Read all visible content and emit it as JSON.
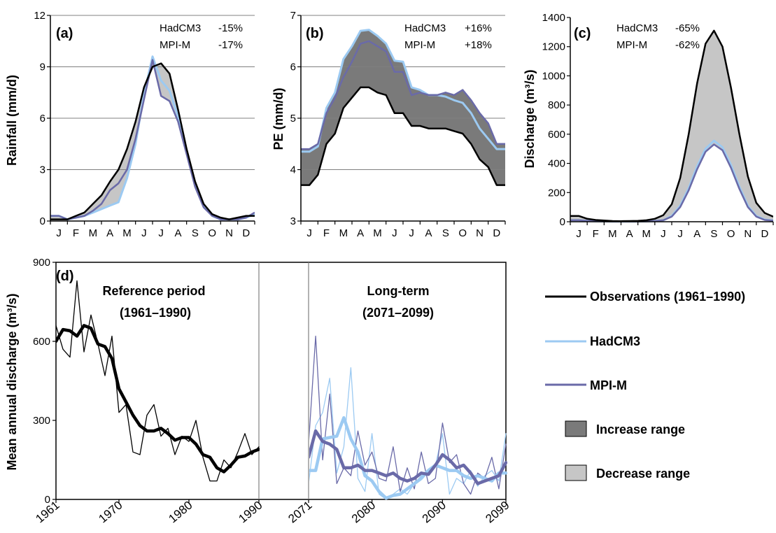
{
  "colors": {
    "observations": "#000000",
    "hadcm3": "#9ccaf2",
    "mpim": "#6a6aa8",
    "increase": "#7a7a7a",
    "decrease": "#c6c6c6",
    "grid": "#808080"
  },
  "legend": {
    "observations": "Observations (1961–1990)",
    "hadcm3": "HadCM3",
    "mpim": "MPI-M",
    "increase": "Increase range",
    "decrease": "Decrease range"
  },
  "chart_data": [
    {
      "type": "line",
      "panel": "(a)",
      "ylabel": "Rainfall (mm/d)",
      "ylim": [
        0,
        12
      ],
      "yticks": [
        0,
        3,
        6,
        9,
        12
      ],
      "grid": true,
      "categories": [
        "J",
        "F",
        "M",
        "A",
        "M",
        "J",
        "J",
        "A",
        "S",
        "O",
        "N",
        "D"
      ],
      "annotations": [
        {
          "model": "HadCM3",
          "change": "-15%"
        },
        {
          "model": "MPI-M",
          "change": "-17%"
        }
      ],
      "series": [
        {
          "name": "Observations",
          "x": [
            0,
            0.5,
            1,
            1.5,
            2,
            2.5,
            3,
            3.5,
            4,
            4.5,
            5,
            5.5,
            6,
            6.5,
            7,
            7.5,
            8,
            8.5,
            9,
            9.5,
            10,
            10.5,
            11,
            11.5
          ],
          "values": [
            0.1,
            0.1,
            0.3,
            0.5,
            1.0,
            1.5,
            2.3,
            3.0,
            4.2,
            5.8,
            7.8,
            9.0,
            9.2,
            8.6,
            6.5,
            4.2,
            2.3,
            1.0,
            0.4,
            0.2,
            0.1,
            0.2,
            0.3,
            0.3
          ]
        },
        {
          "name": "HadCM3",
          "x": [
            0,
            0.5,
            1,
            1.5,
            2,
            2.5,
            3,
            3.5,
            4,
            4.5,
            5,
            5.5,
            6,
            6.5,
            7,
            7.5,
            8,
            8.5,
            9,
            9.5,
            10,
            10.5,
            11,
            11.5
          ],
          "values": [
            0.3,
            0.1,
            0.2,
            0.3,
            0.5,
            0.7,
            0.9,
            1.1,
            2.5,
            4.5,
            7.4,
            9.6,
            8.2,
            7.6,
            6.1,
            4.1,
            2.1,
            0.9,
            0.3,
            0.1,
            0.1,
            0.1,
            0.2,
            0.4
          ]
        },
        {
          "name": "MPI-M",
          "x": [
            0,
            0.5,
            1,
            1.5,
            2,
            2.5,
            3,
            3.5,
            4,
            4.5,
            5,
            5.5,
            6,
            6.5,
            7,
            7.5,
            8,
            8.5,
            9,
            9.5,
            10,
            10.5,
            11,
            11.5
          ],
          "values": [
            0.3,
            0.1,
            0.2,
            0.3,
            0.6,
            1.0,
            1.8,
            2.2,
            3.0,
            4.8,
            7.1,
            9.4,
            7.3,
            7.0,
            5.8,
            3.9,
            2.0,
            0.8,
            0.3,
            0.1,
            0.1,
            0.1,
            0.2,
            0.5
          ]
        }
      ]
    },
    {
      "type": "line",
      "panel": "(b)",
      "ylabel": "PE (mm/d)",
      "ylim": [
        3,
        7
      ],
      "yticks": [
        3,
        4,
        5,
        6,
        7
      ],
      "grid": true,
      "categories": [
        "J",
        "F",
        "M",
        "A",
        "M",
        "J",
        "J",
        "A",
        "S",
        "O",
        "N",
        "D"
      ],
      "annotations": [
        {
          "model": "HadCM3",
          "change": "+16%"
        },
        {
          "model": "MPI-M",
          "change": "+18%"
        }
      ],
      "series": [
        {
          "name": "Observations",
          "x": [
            0,
            0.5,
            1,
            1.5,
            2,
            2.5,
            3,
            3.5,
            4,
            4.5,
            5,
            5.5,
            6,
            6.5,
            7,
            7.5,
            8,
            8.5,
            9,
            9.5,
            10,
            10.5,
            11,
            11.5
          ],
          "values": [
            3.7,
            3.9,
            4.5,
            4.7,
            5.2,
            5.4,
            5.6,
            5.6,
            5.5,
            5.45,
            5.1,
            5.1,
            4.85,
            4.85,
            4.8,
            4.8,
            4.8,
            4.75,
            4.7,
            4.5,
            4.2,
            4.05,
            3.7,
            3.7
          ]
        },
        {
          "name": "HadCM3",
          "x": [
            0,
            0.5,
            1,
            1.5,
            2,
            2.5,
            3,
            3.5,
            4,
            4.5,
            5,
            5.5,
            6,
            6.5,
            7,
            7.5,
            8,
            8.5,
            9,
            9.5,
            10,
            10.5,
            11,
            11.5
          ],
          "values": [
            4.35,
            4.45,
            5.2,
            5.5,
            6.15,
            6.4,
            6.7,
            6.72,
            6.6,
            6.45,
            6.12,
            6.1,
            5.6,
            5.55,
            5.45,
            5.45,
            5.42,
            5.35,
            5.3,
            5.1,
            4.8,
            4.6,
            4.4,
            4.4
          ]
        },
        {
          "name": "MPI-M",
          "x": [
            0,
            0.5,
            1,
            1.5,
            2,
            2.5,
            3,
            3.5,
            4,
            4.5,
            5,
            5.5,
            6,
            6.5,
            7,
            7.5,
            8,
            8.5,
            9,
            9.5,
            10,
            10.5,
            11,
            11.5
          ],
          "values": [
            4.4,
            4.5,
            5.1,
            5.4,
            5.8,
            6.1,
            6.45,
            6.5,
            6.4,
            6.3,
            5.9,
            5.9,
            5.45,
            5.5,
            5.45,
            5.45,
            5.5,
            5.45,
            5.55,
            5.35,
            5.1,
            4.9,
            4.5,
            4.5
          ]
        }
      ]
    },
    {
      "type": "line",
      "panel": "(c)",
      "ylabel": "Discharge (m³/s)",
      "ylim": [
        0,
        1400
      ],
      "yticks": [
        0,
        200,
        400,
        600,
        800,
        1000,
        1200,
        1400
      ],
      "grid": false,
      "categories": [
        "J",
        "F",
        "M",
        "A",
        "M",
        "J",
        "J",
        "A",
        "S",
        "O",
        "N",
        "D"
      ],
      "annotations": [
        {
          "model": "HadCM3",
          "change": "-65%"
        },
        {
          "model": "MPI-M",
          "change": "-62%"
        }
      ],
      "series": [
        {
          "name": "Observations",
          "x": [
            0,
            0.5,
            1,
            1.5,
            2,
            2.5,
            3,
            3.5,
            4,
            4.5,
            5,
            5.5,
            6,
            6.5,
            7,
            7.5,
            8,
            8.5,
            9,
            9.5,
            10,
            10.5,
            11,
            11.5
          ],
          "values": [
            40,
            20,
            12,
            8,
            5,
            4,
            5,
            6,
            10,
            20,
            45,
            120,
            300,
            600,
            950,
            1220,
            1310,
            1200,
            920,
            600,
            310,
            130,
            60,
            35
          ]
        },
        {
          "name": "HadCM3",
          "x": [
            0,
            0.5,
            1,
            1.5,
            2,
            2.5,
            3,
            3.5,
            4,
            4.5,
            5,
            5.5,
            6,
            6.5,
            7,
            7.5,
            8,
            8.5,
            9,
            9.5,
            10,
            10.5,
            11,
            11.5
          ],
          "values": [
            10,
            6,
            4,
            3,
            2,
            2,
            2,
            2,
            3,
            5,
            10,
            40,
            110,
            230,
            380,
            500,
            555,
            510,
            390,
            240,
            110,
            40,
            15,
            8
          ]
        },
        {
          "name": "MPI-M",
          "x": [
            0,
            0.5,
            1,
            1.5,
            2,
            2.5,
            3,
            3.5,
            4,
            4.5,
            5,
            5.5,
            6,
            6.5,
            7,
            7.5,
            8,
            8.5,
            9,
            9.5,
            10,
            10.5,
            11,
            11.5
          ],
          "values": [
            10,
            6,
            4,
            3,
            2,
            2,
            2,
            2,
            3,
            5,
            10,
            35,
            100,
            215,
            360,
            480,
            530,
            490,
            370,
            225,
            100,
            35,
            12,
            7
          ]
        }
      ]
    },
    {
      "type": "line",
      "panel": "(d)",
      "ylabel": "Mean annual discharge (m³/s)",
      "ylim": [
        0,
        900
      ],
      "yticks": [
        0,
        300,
        600,
        900
      ],
      "grid": false,
      "periods": [
        {
          "label": "Reference period",
          "years": "(1961–1990)",
          "xlim": [
            1961,
            1990
          ],
          "xticks": [
            1961,
            1970,
            1980,
            1990
          ]
        },
        {
          "label": "Long-term",
          "years": "(2071–2099)",
          "xlim": [
            2071,
            2099
          ],
          "xticks": [
            2071,
            2080,
            2090,
            2099
          ]
        }
      ],
      "series": [
        {
          "name": "Observations annual",
          "x": [
            1961,
            1962,
            1963,
            1964,
            1965,
            1966,
            1967,
            1968,
            1969,
            1970,
            1971,
            1972,
            1973,
            1974,
            1975,
            1976,
            1977,
            1978,
            1979,
            1980,
            1981,
            1982,
            1983,
            1984,
            1985,
            1986,
            1987,
            1988,
            1989,
            1990
          ],
          "values": [
            660,
            570,
            540,
            830,
            560,
            700,
            590,
            470,
            620,
            330,
            360,
            180,
            170,
            320,
            360,
            240,
            270,
            170,
            240,
            220,
            300,
            160,
            70,
            70,
            150,
            120,
            180,
            250,
            170,
            200
          ]
        },
        {
          "name": "Observations smoothed",
          "x": [
            1961,
            1962,
            1963,
            1964,
            1965,
            1966,
            1967,
            1968,
            1969,
            1970,
            1971,
            1972,
            1973,
            1974,
            1975,
            1976,
            1977,
            1978,
            1979,
            1980,
            1981,
            1982,
            1983,
            1984,
            1985,
            1986,
            1987,
            1988,
            1989,
            1990
          ],
          "values": [
            600,
            645,
            640,
            620,
            660,
            650,
            590,
            580,
            535,
            420,
            370,
            320,
            280,
            260,
            260,
            270,
            250,
            225,
            235,
            235,
            210,
            170,
            160,
            120,
            105,
            130,
            160,
            165,
            180,
            190
          ]
        },
        {
          "name": "HadCM3 annual",
          "x": [
            2071,
            2072,
            2073,
            2074,
            2075,
            2076,
            2077,
            2078,
            2079,
            2080,
            2081,
            2082,
            2083,
            2084,
            2085,
            2086,
            2087,
            2088,
            2089,
            2090,
            2091,
            2092,
            2093,
            2094,
            2095,
            2096,
            2097,
            2098,
            2099
          ],
          "values": [
            60,
            280,
            330,
            460,
            100,
            200,
            500,
            80,
            30,
            250,
            20,
            0,
            20,
            40,
            20,
            60,
            90,
            110,
            130,
            250,
            20,
            80,
            60,
            110,
            50,
            90,
            110,
            70,
            250
          ]
        },
        {
          "name": "HadCM3 smoothed",
          "x": [
            2071,
            2072,
            2073,
            2074,
            2075,
            2076,
            2077,
            2078,
            2079,
            2080,
            2081,
            2082,
            2083,
            2084,
            2085,
            2086,
            2087,
            2088,
            2089,
            2090,
            2091,
            2092,
            2093,
            2094,
            2095,
            2096,
            2097,
            2098,
            2099
          ],
          "values": [
            110,
            110,
            230,
            235,
            240,
            310,
            230,
            180,
            90,
            70,
            30,
            5,
            15,
            20,
            40,
            60,
            80,
            110,
            130,
            120,
            110,
            110,
            90,
            80,
            90,
            80,
            70,
            100,
            100
          ]
        },
        {
          "name": "MPI-M annual",
          "x": [
            2071,
            2072,
            2073,
            2074,
            2075,
            2076,
            2077,
            2078,
            2079,
            2080,
            2081,
            2082,
            2083,
            2084,
            2085,
            2086,
            2087,
            2088,
            2089,
            2090,
            2091,
            2092,
            2093,
            2094,
            2095,
            2096,
            2097,
            2098,
            2099
          ],
          "values": [
            210,
            620,
            150,
            400,
            60,
            120,
            90,
            260,
            130,
            180,
            80,
            70,
            200,
            30,
            120,
            40,
            180,
            60,
            80,
            290,
            140,
            170,
            60,
            20,
            100,
            80,
            160,
            40,
            210
          ]
        },
        {
          "name": "MPI-M smoothed",
          "x": [
            2071,
            2072,
            2073,
            2074,
            2075,
            2076,
            2077,
            2078,
            2079,
            2080,
            2081,
            2082,
            2083,
            2084,
            2085,
            2086,
            2087,
            2088,
            2089,
            2090,
            2091,
            2092,
            2093,
            2094,
            2095,
            2096,
            2097,
            2098,
            2099
          ],
          "values": [
            160,
            260,
            220,
            210,
            190,
            120,
            120,
            130,
            110,
            110,
            100,
            90,
            100,
            80,
            70,
            80,
            100,
            95,
            130,
            170,
            150,
            120,
            130,
            100,
            60,
            70,
            80,
            90,
            140
          ]
        }
      ]
    }
  ]
}
